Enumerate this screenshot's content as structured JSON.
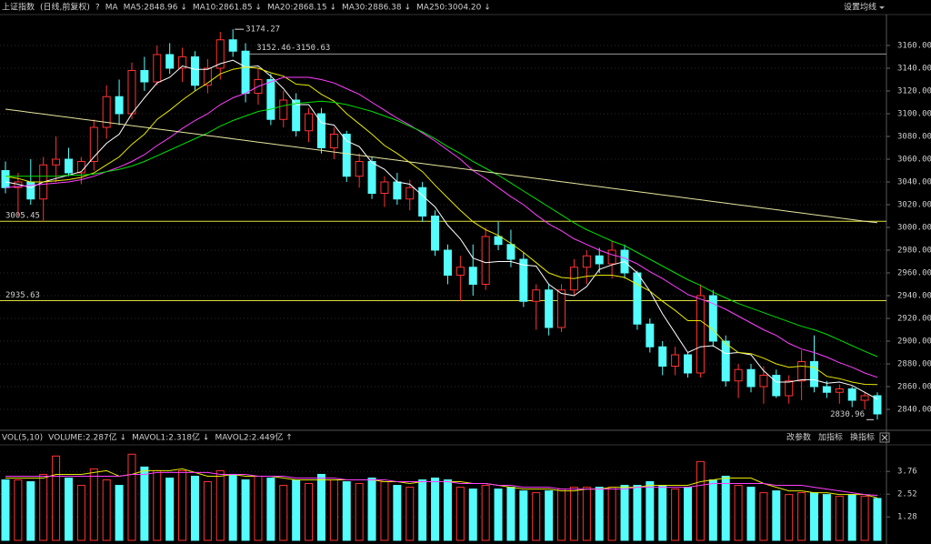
{
  "chart_data": [
    {
      "type": "candlestick",
      "title": "上证指数",
      "subtitle": "(日线,前复权)",
      "help": "?",
      "indicator": "MA",
      "settings": "设置均线",
      "up_color": "#ff3232",
      "down_color": "#54fcfc",
      "open": [
        3050,
        3035,
        3040,
        3025,
        3055,
        3060,
        3048,
        3058,
        3088,
        3115,
        3100,
        3138,
        3128,
        3152,
        3140,
        3150,
        3125,
        3140,
        3165,
        3155,
        3118,
        3130,
        3095,
        3112,
        3085,
        3100,
        3070,
        3082,
        3045,
        3058,
        3030,
        3040,
        3025,
        3035,
        3010,
        2980,
        2958,
        2965,
        2950,
        2992,
        2985,
        2972,
        2935,
        2945,
        2912,
        2945,
        2965,
        2975,
        2968,
        2980,
        2960,
        2915,
        2895,
        2878,
        2888,
        2872,
        2940,
        2900,
        2865,
        2875,
        2860,
        2870,
        2852,
        2865,
        2882,
        2860,
        2855,
        2858,
        2848,
        2852
      ],
      "high": [
        3058,
        3048,
        3060,
        3062,
        3080,
        3070,
        3062,
        3095,
        3125,
        3130,
        3145,
        3150,
        3160,
        3162,
        3158,
        3155,
        3148,
        3172,
        3174.27,
        3162,
        3140,
        3135,
        3120,
        3118,
        3105,
        3105,
        3088,
        3085,
        3065,
        3062,
        3045,
        3048,
        3042,
        3040,
        3015,
        2985,
        2975,
        2985,
        3000,
        3005,
        2998,
        2978,
        2950,
        2950,
        2950,
        2972,
        2980,
        2982,
        2988,
        2985,
        2962,
        2920,
        2900,
        2895,
        2890,
        2950,
        2945,
        2905,
        2880,
        2880,
        2878,
        2875,
        2870,
        2892,
        2905,
        2865,
        2862,
        2860,
        2855,
        2855
      ],
      "low": [
        3030,
        3010,
        3020,
        3005,
        3040,
        3045,
        3038,
        3050,
        3078,
        3090,
        3095,
        3120,
        3125,
        3135,
        3128,
        3120,
        3118,
        3130,
        3150,
        3110,
        3108,
        3090,
        3088,
        3080,
        3075,
        3065,
        3060,
        3040,
        3035,
        3025,
        3018,
        3020,
        3015,
        3005,
        2975,
        2950,
        2935,
        2940,
        2945,
        2980,
        2965,
        2930,
        2910,
        2905,
        2908,
        2940,
        2950,
        2960,
        2955,
        2955,
        2910,
        2890,
        2870,
        2870,
        2868,
        2868,
        2895,
        2860,
        2850,
        2855,
        2845,
        2850,
        2845,
        2848,
        2855,
        2850,
        2845,
        2842,
        2840,
        2830.96
      ],
      "close": [
        3035,
        3040,
        3025,
        3055,
        3060,
        3048,
        3058,
        3088,
        3115,
        3100,
        3138,
        3128,
        3152,
        3140,
        3150,
        3125,
        3140,
        3165,
        3155,
        3118,
        3130,
        3095,
        3112,
        3085,
        3100,
        3070,
        3082,
        3045,
        3058,
        3030,
        3040,
        3025,
        3035,
        3010,
        2980,
        2958,
        2965,
        2950,
        2992,
        2985,
        2972,
        2935,
        2945,
        2912,
        2945,
        2965,
        2975,
        2968,
        2980,
        2960,
        2915,
        2895,
        2878,
        2888,
        2872,
        2940,
        2900,
        2865,
        2875,
        2860,
        2870,
        2852,
        2865,
        2882,
        2860,
        2855,
        2858,
        2848,
        2852,
        2836
      ],
      "series": [
        {
          "name": "MA5:2848.96 ↓",
          "color": "#ffffff",
          "values": [
            3040,
            3038,
            3035,
            3040,
            3043,
            3046,
            3049,
            3062,
            3074,
            3082,
            3100,
            3114,
            3127,
            3132,
            3142,
            3139,
            3139,
            3144,
            3147,
            3141,
            3142,
            3133,
            3122,
            3108,
            3108,
            3092,
            3090,
            3076,
            3071,
            3057,
            3051,
            3040,
            3038,
            3028,
            3018,
            3002,
            2990,
            2973,
            2969,
            2970,
            2970,
            2967,
            2966,
            2950,
            2942,
            2940,
            2948,
            2963,
            2967,
            2970,
            2960,
            2944,
            2924,
            2907,
            2890,
            2895,
            2896,
            2889,
            2890,
            2888,
            2874,
            2864,
            2864,
            2866,
            2866,
            2863,
            2864,
            2861,
            2855,
            2848.96
          ]
        },
        {
          "name": "MA10:2861.85 ↓",
          "color": "#e8e800",
          "values": [
            3045,
            3043,
            3040,
            3040,
            3041,
            3042,
            3044,
            3048,
            3055,
            3062,
            3073,
            3082,
            3095,
            3103,
            3112,
            3120,
            3127,
            3135,
            3139,
            3141,
            3140,
            3136,
            3133,
            3126,
            3125,
            3117,
            3111,
            3100,
            3091,
            3082,
            3072,
            3065,
            3057,
            3049,
            3037,
            3026,
            3015,
            3005,
            2998,
            2993,
            2986,
            2978,
            2969,
            2960,
            2956,
            2955,
            2957,
            2958,
            2958,
            2956,
            2950,
            2944,
            2935,
            2927,
            2918,
            2918,
            2910,
            2898,
            2890,
            2889,
            2885,
            2880,
            2877,
            2878,
            2877,
            2869,
            2867,
            2864,
            2862,
            2861.85
          ]
        },
        {
          "name": "MA20:2868.15 ↓",
          "color": "#ff40ff",
          "values": [
            3035,
            3036,
            3037,
            3038,
            3039,
            3040,
            3042,
            3045,
            3049,
            3053,
            3058,
            3064,
            3072,
            3079,
            3087,
            3094,
            3100,
            3108,
            3114,
            3118,
            3124,
            3128,
            3132,
            3132,
            3132,
            3130,
            3127,
            3122,
            3117,
            3110,
            3103,
            3096,
            3090,
            3083,
            3076,
            3068,
            3060,
            3050,
            3043,
            3035,
            3027,
            3020,
            3011,
            3003,
            2997,
            2990,
            2985,
            2980,
            2976,
            2973,
            2968,
            2961,
            2955,
            2948,
            2941,
            2937,
            2933,
            2928,
            2922,
            2916,
            2910,
            2905,
            2898,
            2893,
            2890,
            2886,
            2881,
            2877,
            2872,
            2868.15
          ]
        },
        {
          "name": "MA30:2886.38 ↓",
          "color": "#00e000",
          "values": [
            3045,
            3045,
            3045,
            3045,
            3045,
            3046,
            3046,
            3047,
            3049,
            3051,
            3054,
            3058,
            3063,
            3068,
            3073,
            3078,
            3083,
            3089,
            3094,
            3098,
            3102,
            3104,
            3107,
            3109,
            3110,
            3111,
            3110,
            3108,
            3105,
            3102,
            3098,
            3094,
            3089,
            3084,
            3078,
            3071,
            3065,
            3058,
            3052,
            3046,
            3039,
            3032,
            3025,
            3018,
            3011,
            3004,
            2998,
            2993,
            2988,
            2984,
            2978,
            2972,
            2966,
            2960,
            2954,
            2949,
            2943,
            2938,
            2933,
            2929,
            2925,
            2921,
            2917,
            2913,
            2910,
            2906,
            2901,
            2896,
            2891,
            2886.38
          ]
        },
        {
          "name": "MA250:3004.20 ↓",
          "color": "#e6e6a0",
          "values": [
            3104.0,
            3102.6,
            3101.1,
            3099.7,
            3098.2,
            3096.8,
            3095.3,
            3093.9,
            3092.4,
            3091.0,
            3089.5,
            3088.1,
            3086.6,
            3085.2,
            3083.7,
            3082.3,
            3080.8,
            3079.4,
            3077.9,
            3076.5,
            3075.0,
            3073.6,
            3072.1,
            3070.7,
            3069.2,
            3067.8,
            3066.3,
            3064.9,
            3063.4,
            3062.0,
            3060.5,
            3059.1,
            3057.6,
            3056.2,
            3054.7,
            3053.3,
            3051.8,
            3050.4,
            3048.9,
            3047.5,
            3046.0,
            3044.6,
            3043.1,
            3041.7,
            3040.2,
            3038.8,
            3037.3,
            3035.9,
            3034.4,
            3033.0,
            3031.5,
            3030.1,
            3028.6,
            3027.2,
            3025.7,
            3024.3,
            3022.8,
            3021.4,
            3019.9,
            3018.5,
            3017.0,
            3015.6,
            3014.1,
            3012.7,
            3011.2,
            3009.8,
            3008.3,
            3006.9,
            3005.4,
            3004.2
          ]
        }
      ],
      "ylim": [
        2825.6,
        3185.6
      ],
      "yticks": [
        {
          "value": 2840,
          "label": "2840.00"
        },
        {
          "value": 2860,
          "label": "2860.00"
        },
        {
          "value": 2880,
          "label": "2880.00"
        },
        {
          "value": 2900,
          "label": "2900.00"
        },
        {
          "value": 2920,
          "label": "2920.00"
        },
        {
          "value": 2940,
          "label": "2940.00"
        },
        {
          "value": 2960,
          "label": "2960.00"
        },
        {
          "value": 2980,
          "label": "2980.00"
        },
        {
          "value": 3000,
          "label": "3000.00"
        },
        {
          "value": 3020,
          "label": "3020.00"
        },
        {
          "value": 3040,
          "label": "3040.00"
        },
        {
          "value": 3060,
          "label": "3060.00"
        },
        {
          "value": 3080,
          "label": "3080.00"
        },
        {
          "value": 3100,
          "label": "3100.00"
        },
        {
          "value": 3120,
          "label": "3120.00"
        },
        {
          "value": 3140,
          "label": "3140.00"
        },
        {
          "value": 3160,
          "label": "3160.00"
        }
      ],
      "grid": true,
      "hlines": [
        {
          "value": 3005.45,
          "label": "3005.45",
          "color": "#e0e040"
        },
        {
          "value": 2935.63,
          "label": "2935.63",
          "color": "#e0e040"
        }
      ],
      "range_line": {
        "values": [
          3152.46,
          3150.63
        ],
        "label": "3152.46-3150.63"
      },
      "high_label": "3174.27",
      "low_label": "2830.96"
    },
    {
      "type": "bar",
      "title": "VOL(5,10)",
      "bar_name": "VOLUME:2.287亿 ↓",
      "values": [
        3.3,
        3.3,
        3.2,
        3.6,
        4.6,
        3.4,
        3.0,
        3.9,
        3.3,
        3.0,
        4.7,
        4.0,
        3.8,
        3.4,
        3.8,
        3.5,
        3.2,
        3.8,
        3.6,
        3.3,
        3.5,
        3.4,
        3.0,
        3.3,
        3.1,
        3.6,
        3.3,
        3.2,
        3.1,
        3.4,
        3.2,
        3.0,
        2.9,
        3.3,
        3.4,
        3.3,
        2.9,
        2.8,
        3.0,
        2.8,
        2.9,
        2.7,
        2.6,
        2.7,
        2.8,
        2.9,
        2.9,
        2.9,
        2.9,
        3.0,
        3.0,
        3.2,
        3.0,
        2.8,
        2.9,
        4.3,
        3.3,
        3.5,
        3.0,
        2.9,
        2.6,
        2.7,
        2.5,
        2.6,
        2.6,
        2.5,
        2.4,
        2.5,
        2.4,
        2.287
      ],
      "series": [
        {
          "name": "MAVOL1:2.318亿 ↓",
          "color": "#e8e800",
          "values": [
            3.4,
            3.4,
            3.4,
            3.4,
            3.6,
            3.6,
            3.6,
            3.7,
            3.8,
            3.5,
            3.6,
            3.8,
            3.8,
            3.8,
            3.9,
            3.7,
            3.5,
            3.5,
            3.6,
            3.5,
            3.5,
            3.5,
            3.4,
            3.3,
            3.3,
            3.3,
            3.3,
            3.3,
            3.3,
            3.3,
            3.2,
            3.2,
            3.1,
            3.2,
            3.2,
            3.2,
            3.2,
            3.1,
            3.1,
            3.0,
            2.9,
            2.8,
            2.8,
            2.8,
            2.7,
            2.7,
            2.8,
            2.8,
            2.9,
            2.9,
            2.9,
            3.0,
            3.0,
            3.0,
            3.0,
            3.2,
            3.3,
            3.4,
            3.4,
            3.4,
            3.1,
            2.9,
            2.7,
            2.7,
            2.6,
            2.6,
            2.5,
            2.5,
            2.5,
            2.318
          ]
        },
        {
          "name": "MAVOL2:2.449亿 ↑",
          "color": "#ff40ff",
          "values": [
            3.5,
            3.5,
            3.5,
            3.5,
            3.5,
            3.5,
            3.5,
            3.5,
            3.5,
            3.5,
            3.6,
            3.6,
            3.7,
            3.7,
            3.7,
            3.7,
            3.7,
            3.6,
            3.6,
            3.6,
            3.5,
            3.5,
            3.5,
            3.4,
            3.4,
            3.4,
            3.4,
            3.3,
            3.3,
            3.3,
            3.3,
            3.2,
            3.2,
            3.2,
            3.2,
            3.2,
            3.1,
            3.1,
            3.1,
            3.0,
            3.0,
            2.9,
            2.9,
            2.9,
            2.8,
            2.8,
            2.8,
            2.8,
            2.8,
            2.8,
            2.9,
            2.9,
            2.9,
            2.9,
            2.9,
            3.0,
            3.1,
            3.1,
            3.1,
            3.1,
            3.1,
            3.0,
            3.0,
            3.0,
            2.9,
            2.8,
            2.7,
            2.6,
            2.5,
            2.449
          ]
        }
      ],
      "ylim": [
        0,
        5.26
      ],
      "yticks": [
        1.28,
        2.52,
        3.76
      ],
      "grid": true,
      "buttons": [
        "改参数",
        "加指标",
        "换指标"
      ]
    }
  ]
}
